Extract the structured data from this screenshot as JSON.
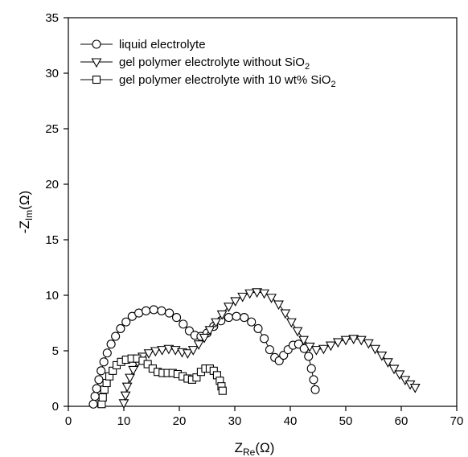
{
  "chart_data": {
    "type": "scatter",
    "title": "",
    "xlabel": {
      "main": "Z",
      "sub": "Re",
      "unit": "(Ω)"
    },
    "ylabel": {
      "prefix": "-Z",
      "sub": "Im",
      "unit": "(Ω)"
    },
    "xlim": [
      0,
      70
    ],
    "ylim": [
      0,
      35
    ],
    "xticks": [
      0,
      10,
      20,
      30,
      40,
      50,
      60,
      70
    ],
    "yticks": [
      0,
      5,
      10,
      15,
      20,
      25,
      30,
      35
    ],
    "grid": false,
    "legend_position": "top-left",
    "series": [
      {
        "name": "liquid electrolyte",
        "label_main": "liquid electrolyte",
        "label_sub": "",
        "label_tail": "",
        "marker": "circle",
        "points": [
          [
            4.5,
            0.2
          ],
          [
            4.8,
            0.9
          ],
          [
            5.1,
            1.6
          ],
          [
            5.5,
            2.4
          ],
          [
            5.9,
            3.2
          ],
          [
            6.4,
            4.0
          ],
          [
            7.0,
            4.8
          ],
          [
            7.7,
            5.6
          ],
          [
            8.5,
            6.3
          ],
          [
            9.4,
            7.0
          ],
          [
            10.4,
            7.6
          ],
          [
            11.5,
            8.1
          ],
          [
            12.7,
            8.4
          ],
          [
            14.0,
            8.6
          ],
          [
            15.4,
            8.7
          ],
          [
            16.8,
            8.6
          ],
          [
            18.2,
            8.4
          ],
          [
            19.5,
            8.0
          ],
          [
            20.7,
            7.4
          ],
          [
            21.8,
            6.8
          ],
          [
            22.8,
            6.4
          ],
          [
            23.9,
            6.3
          ],
          [
            25.0,
            6.6
          ],
          [
            26.2,
            7.2
          ],
          [
            27.5,
            7.7
          ],
          [
            28.9,
            8.0
          ],
          [
            30.3,
            8.1
          ],
          [
            31.7,
            8.0
          ],
          [
            33.0,
            7.6
          ],
          [
            34.2,
            7.0
          ],
          [
            35.3,
            6.1
          ],
          [
            36.3,
            5.1
          ],
          [
            37.2,
            4.4
          ],
          [
            38.0,
            4.1
          ],
          [
            38.8,
            4.6
          ],
          [
            39.6,
            5.1
          ],
          [
            40.5,
            5.5
          ],
          [
            41.5,
            5.6
          ],
          [
            42.5,
            5.2
          ],
          [
            43.3,
            4.5
          ],
          [
            43.8,
            3.4
          ],
          [
            44.2,
            2.4
          ],
          [
            44.5,
            1.5
          ]
        ]
      },
      {
        "name": "gel polymer electrolyte without SiO₂",
        "label_main": "gel polymer electrolyte without SiO",
        "label_sub": "2",
        "label_tail": "",
        "marker": "triangle-down",
        "points": [
          [
            10.0,
            0.3
          ],
          [
            10.3,
            1.0
          ],
          [
            10.6,
            1.8
          ],
          [
            11.1,
            2.6
          ],
          [
            11.7,
            3.3
          ],
          [
            12.5,
            4.0
          ],
          [
            13.4,
            4.5
          ],
          [
            14.5,
            4.8
          ],
          [
            15.7,
            5.0
          ],
          [
            16.9,
            5.1
          ],
          [
            18.1,
            5.2
          ],
          [
            19.3,
            5.1
          ],
          [
            20.5,
            4.9
          ],
          [
            21.5,
            4.8
          ],
          [
            22.5,
            5.1
          ],
          [
            23.5,
            5.6
          ],
          [
            24.5,
            6.2
          ],
          [
            25.5,
            6.9
          ],
          [
            26.6,
            7.6
          ],
          [
            27.7,
            8.3
          ],
          [
            28.9,
            9.0
          ],
          [
            30.1,
            9.5
          ],
          [
            31.4,
            9.9
          ],
          [
            32.7,
            10.2
          ],
          [
            34.0,
            10.3
          ],
          [
            35.3,
            10.2
          ],
          [
            36.6,
            9.8
          ],
          [
            37.9,
            9.2
          ],
          [
            39.1,
            8.4
          ],
          [
            40.2,
            7.6
          ],
          [
            41.3,
            6.8
          ],
          [
            42.4,
            6.0
          ],
          [
            43.5,
            5.4
          ],
          [
            44.7,
            5.1
          ],
          [
            46.0,
            5.2
          ],
          [
            47.3,
            5.5
          ],
          [
            48.6,
            5.8
          ],
          [
            50.0,
            6.0
          ],
          [
            51.4,
            6.1
          ],
          [
            52.8,
            6.0
          ],
          [
            54.1,
            5.7
          ],
          [
            55.3,
            5.2
          ],
          [
            56.5,
            4.6
          ],
          [
            57.6,
            4.0
          ],
          [
            58.7,
            3.4
          ],
          [
            59.7,
            2.9
          ],
          [
            60.7,
            2.4
          ],
          [
            61.6,
            2.0
          ],
          [
            62.5,
            1.7
          ]
        ]
      },
      {
        "name": "gel polymer electrolyte with 10 wt% SiO₂",
        "label_main": "gel polymer electrolyte with 10 wt% SiO",
        "label_sub": "2",
        "label_tail": "",
        "marker": "square",
        "points": [
          [
            6.0,
            0.2
          ],
          [
            6.2,
            0.8
          ],
          [
            6.5,
            1.5
          ],
          [
            6.9,
            2.1
          ],
          [
            7.4,
            2.7
          ],
          [
            8.0,
            3.2
          ],
          [
            8.7,
            3.7
          ],
          [
            9.5,
            4.0
          ],
          [
            10.4,
            4.2
          ],
          [
            11.4,
            4.3
          ],
          [
            12.4,
            4.3
          ],
          [
            13.4,
            4.1
          ],
          [
            14.3,
            3.8
          ],
          [
            15.2,
            3.4
          ],
          [
            16.1,
            3.1
          ],
          [
            17.0,
            3.0
          ],
          [
            17.9,
            3.0
          ],
          [
            18.8,
            3.0
          ],
          [
            19.7,
            2.9
          ],
          [
            20.6,
            2.7
          ],
          [
            21.5,
            2.5
          ],
          [
            22.3,
            2.4
          ],
          [
            23.1,
            2.6
          ],
          [
            23.9,
            3.1
          ],
          [
            24.7,
            3.4
          ],
          [
            25.5,
            3.4
          ],
          [
            26.2,
            3.2
          ],
          [
            26.8,
            2.8
          ],
          [
            27.3,
            2.3
          ],
          [
            27.6,
            1.8
          ],
          [
            27.8,
            1.4
          ]
        ]
      }
    ]
  }
}
